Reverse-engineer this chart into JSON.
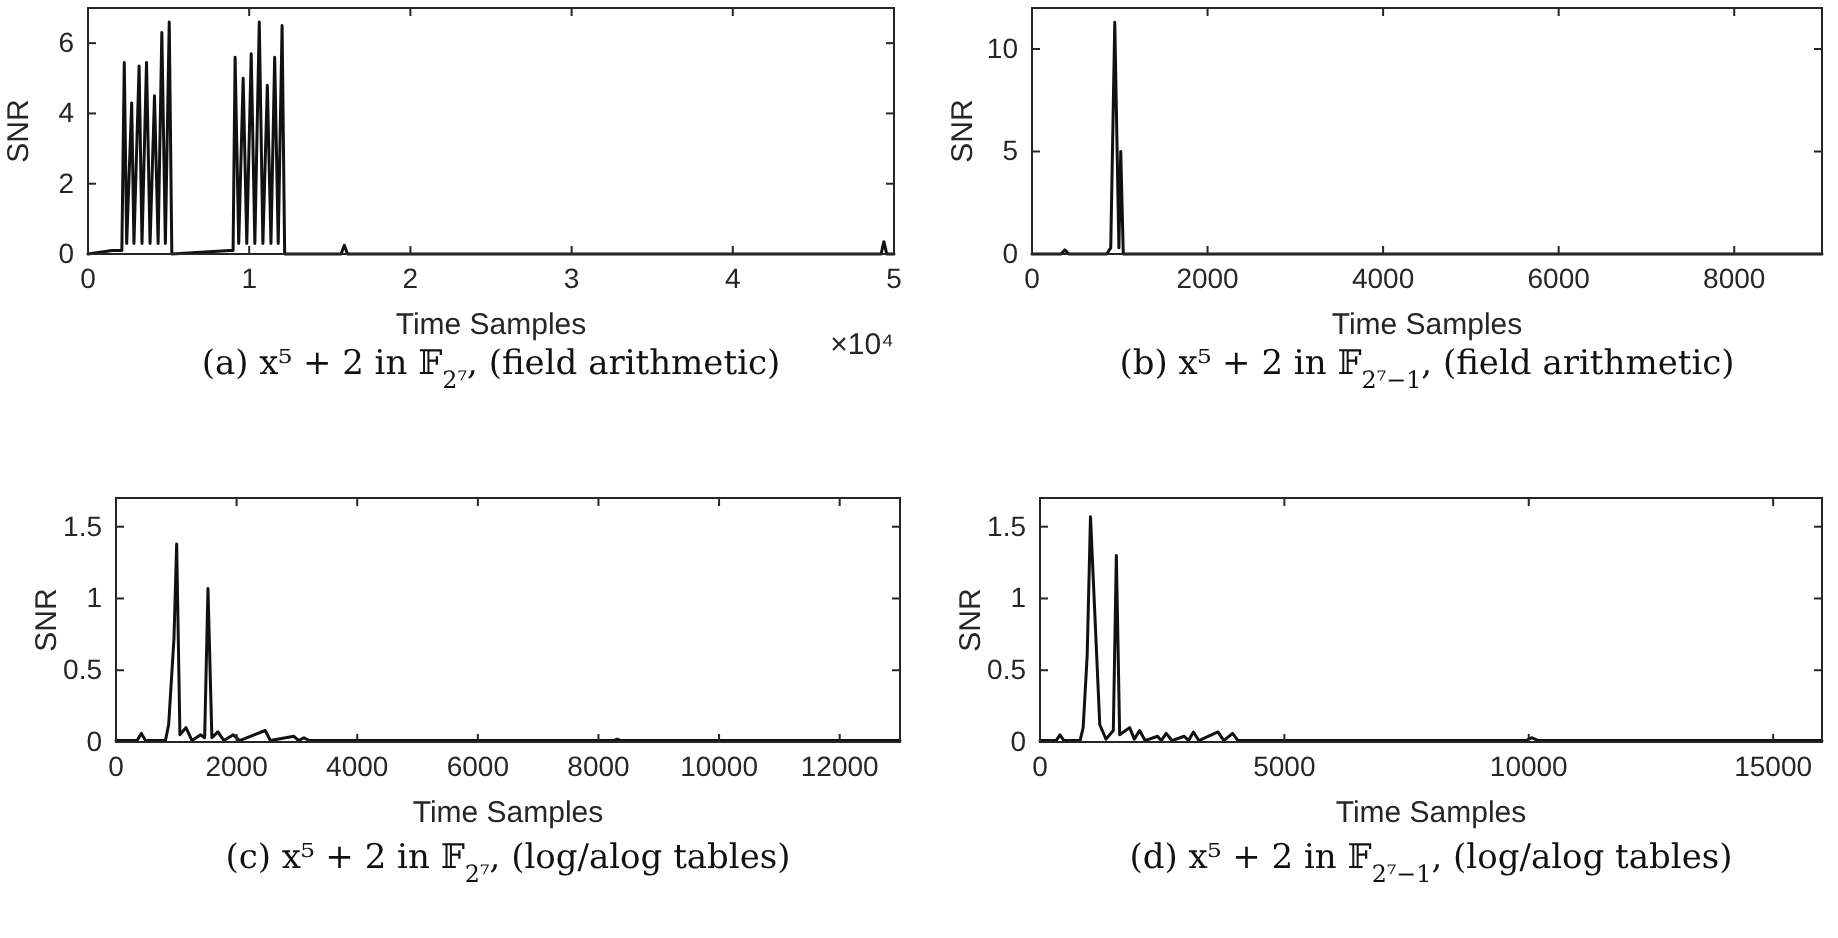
{
  "chart_data": [
    {
      "type": "line",
      "title": "(a) x⁵ + 2 in 𝔽$_{2⁷}$, (field arithmetic)",
      "xlabel": "Time Samples",
      "ylabel": "SNR",
      "annotations": [
        "×10⁴"
      ],
      "xlim": [
        0,
        5
      ],
      "xticks": [
        0,
        1,
        2,
        3,
        4,
        5
      ],
      "ylim": [
        0,
        7
      ],
      "yticks": [
        0,
        2,
        4,
        6
      ],
      "grid": false,
      "line_style": "solid",
      "series": [
        {
          "color": "#111111",
          "x": [
            0,
            0.15,
            0.21,
            0.225,
            0.24,
            0.271,
            0.285,
            0.317,
            0.335,
            0.363,
            0.385,
            0.4125,
            0.435,
            0.458,
            0.48,
            0.504,
            0.52,
            0.88,
            0.9,
            0.9125,
            0.935,
            0.9625,
            0.985,
            1.0125,
            1.035,
            1.0625,
            1.085,
            1.1125,
            1.135,
            1.158,
            1.18,
            1.204,
            1.22,
            1.57,
            1.59,
            1.61,
            4.92,
            4.9375,
            4.955,
            5
          ],
          "values": [
            0,
            0.1,
            0.1,
            5.45,
            0.3,
            4.3,
            0.3,
            5.35,
            0.3,
            5.45,
            0.3,
            4.5,
            0.3,
            6.3,
            0.3,
            6.6,
            0,
            0.1,
            0.1,
            5.6,
            0.3,
            5.0,
            0.3,
            5.7,
            0.3,
            6.6,
            0.3,
            4.8,
            0.3,
            5.6,
            0.3,
            6.5,
            0,
            0,
            0.25,
            0,
            0,
            0.35,
            0,
            0
          ]
        }
      ]
    },
    {
      "type": "line",
      "title": "(b) x⁵ + 2 in 𝔽$_{2⁷−1}$, (field arithmetic)",
      "xlabel": "Time Samples",
      "ylabel": "SNR",
      "xlim": [
        0,
        9000
      ],
      "xticks": [
        0,
        2000,
        4000,
        6000,
        8000
      ],
      "ylim": [
        0,
        12
      ],
      "yticks": [
        0,
        5,
        10
      ],
      "grid": false,
      "line_style": "solid",
      "series": [
        {
          "color": "#111111",
          "x": [
            0,
            330,
            373,
            420,
            850,
            897,
            943,
            990,
            1011,
            1040,
            9000
          ],
          "values": [
            0,
            0,
            0.2,
            0,
            0,
            0.3,
            11.3,
            0.3,
            5.0,
            0,
            0
          ]
        }
      ]
    },
    {
      "type": "line",
      "title": "(c) x⁵ + 2 in 𝔽$_{2⁷}$, (log/alog tables)",
      "xlabel": "Time Samples",
      "ylabel": "SNR",
      "xlim": [
        0,
        13000
      ],
      "xticks": [
        0,
        2000,
        4000,
        6000,
        8000,
        10000,
        12000
      ],
      "ylim": [
        0,
        1.7
      ],
      "yticks": [
        0,
        0.5,
        1,
        1.5
      ],
      "grid": false,
      "line_style": "solid",
      "series": [
        {
          "color": "#111111",
          "x": [
            0,
            350,
            420,
            490,
            820,
            873,
            961,
            1006,
            1060,
            1160,
            1260,
            1403,
            1470,
            1525,
            1590,
            1690,
            1790,
            1945,
            2050,
            2475,
            2560,
            2950,
            3030,
            3116,
            3200,
            8250,
            8310,
            8370,
            13000
          ],
          "values": [
            0.01,
            0.01,
            0.06,
            0.01,
            0.01,
            0.12,
            0.72,
            1.38,
            0.05,
            0.1,
            0.01,
            0.05,
            0.03,
            1.07,
            0.03,
            0.07,
            0.01,
            0.05,
            0.01,
            0.08,
            0.01,
            0.04,
            0.01,
            0.03,
            0.01,
            0.01,
            0.02,
            0.01,
            0.01
          ]
        }
      ]
    },
    {
      "type": "line",
      "title": "(d) x⁵ + 2 in 𝔽$_{2⁷−1}$, (log/alog tables)",
      "xlabel": "Time Samples",
      "ylabel": "SNR",
      "xlim": [
        0,
        16000
      ],
      "xticks": [
        0,
        5000,
        10000,
        15000
      ],
      "ylim": [
        0,
        1.7
      ],
      "yticks": [
        0,
        0.5,
        1,
        1.5
      ],
      "grid": false,
      "line_style": "solid",
      "series": [
        {
          "color": "#111111",
          "x": [
            0,
            330,
            408,
            490,
            820,
            883,
            965,
            1033,
            1223,
            1350,
            1500,
            1562,
            1630,
            1834,
            1930,
            2038,
            2150,
            2405,
            2480,
            2582,
            2700,
            2949,
            3040,
            3139,
            3250,
            3641,
            3760,
            3940,
            4050,
            9950,
            10054,
            10200,
            16000
          ],
          "values": [
            0.01,
            0.01,
            0.05,
            0.01,
            0.01,
            0.1,
            0.6,
            1.57,
            0.12,
            0.02,
            0.08,
            1.3,
            0.05,
            0.1,
            0.02,
            0.08,
            0.01,
            0.04,
            0.01,
            0.06,
            0.01,
            0.04,
            0.01,
            0.07,
            0.01,
            0.07,
            0.01,
            0.06,
            0.01,
            0.01,
            0.03,
            0.01,
            0.01
          ]
        }
      ]
    }
  ]
}
